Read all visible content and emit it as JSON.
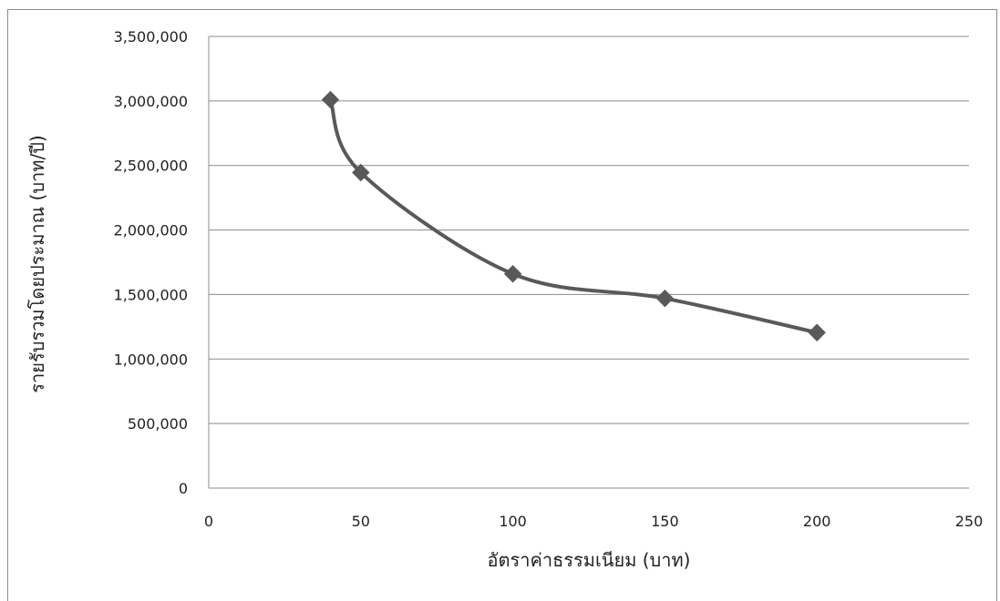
{
  "chart_data": {
    "type": "line",
    "smooth": true,
    "marker": "diamond",
    "title": "",
    "xlabel": "อัตราค่าธรรมเนียม (บาท)",
    "ylabel": "รายรับรวมโดยประมาณ (บาท/ปี)",
    "xlim": [
      0,
      250
    ],
    "ylim": [
      0,
      3500000
    ],
    "xticks": [
      0,
      50,
      100,
      150,
      200,
      250
    ],
    "yticks": [
      0,
      500000,
      1000000,
      1500000,
      2000000,
      2500000,
      3000000,
      3500000
    ],
    "xtick_labels": [
      "0",
      "50",
      "100",
      "150",
      "200",
      "250"
    ],
    "ytick_labels": [
      "0",
      "500,000",
      "1,000,000",
      "1,500,000",
      "2,000,000",
      "2,500,000",
      "3,000,000",
      "3,500,000"
    ],
    "grid": "horizontal",
    "legend": "none",
    "series": [
      {
        "x": [
          40,
          50,
          100,
          150,
          200
        ],
        "values": [
          3010000,
          2445000,
          1660000,
          1470000,
          1205000
        ]
      }
    ],
    "colors": {
      "line": "#595959",
      "marker": "#595959",
      "grid": "#8c8c8c",
      "axis": "#8c8c8c"
    }
  }
}
